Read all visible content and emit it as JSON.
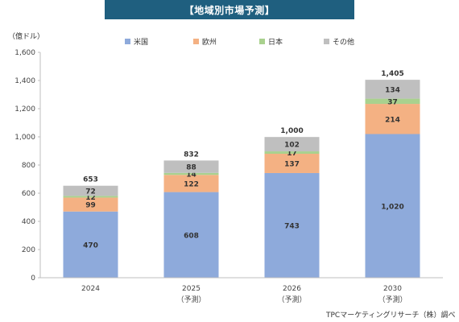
{
  "header": {
    "title": "【地域別市場予測】"
  },
  "unit_label": "（億ドル）",
  "source": "TPCマーケティングリサーチ（株）調べ",
  "chart_data": {
    "type": "bar",
    "stacked": true,
    "categories": [
      "2024",
      "2025",
      "2026",
      "2030"
    ],
    "category_sublabels": [
      "",
      "（予測）",
      "（予測）",
      "（予測）"
    ],
    "series": [
      {
        "name": "米国",
        "color": "#8eaadb",
        "values": [
          470,
          608,
          743,
          1020
        ]
      },
      {
        "name": "欧州",
        "color": "#f4b183",
        "values": [
          99,
          122,
          137,
          214
        ]
      },
      {
        "name": "日本",
        "color": "#a9d18e",
        "values": [
          12,
          14,
          17,
          37
        ]
      },
      {
        "name": "その他",
        "color": "#bfbfbf",
        "values": [
          72,
          88,
          102,
          134
        ]
      }
    ],
    "totals": [
      653,
      832,
      1000,
      1405
    ],
    "ylim": [
      0,
      1600
    ],
    "yticks": [
      0,
      200,
      400,
      600,
      800,
      1000,
      1200,
      1400,
      1600
    ],
    "ytick_labels": [
      "0",
      "200",
      "400",
      "600",
      "800",
      "1,000",
      "1,200",
      "1,400",
      "1,600"
    ],
    "segment_labels": [
      [
        "470",
        "608",
        "743",
        "1,020"
      ],
      [
        "99",
        "122",
        "137",
        "214"
      ],
      [
        "12",
        "14",
        "17",
        "37"
      ],
      [
        "72",
        "88",
        "102",
        "134"
      ]
    ],
    "total_labels": [
      "653",
      "832",
      "1,000",
      "1,405"
    ],
    "legend_position": "top"
  }
}
